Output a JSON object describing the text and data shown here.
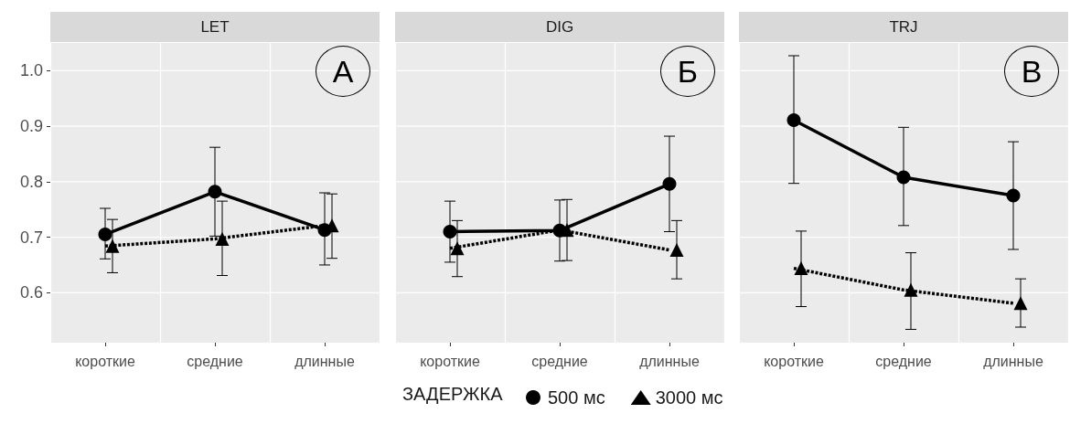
{
  "chart_data": [
    {
      "type": "line",
      "title": "LET",
      "categories": [
        "короткие",
        "средние",
        "длинные"
      ],
      "ylim": [
        0.51,
        1.05
      ],
      "yticks": [
        0.6,
        0.7,
        0.8,
        0.9,
        {
          "value": 1,
          "label": "1.0"
        }
      ],
      "grid": true,
      "annotations": [
        "А"
      ],
      "series": [
        {
          "color": "#000000",
          "marker": "circle",
          "line_style": "solid",
          "values": [
            0.705,
            0.782,
            0.713
          ],
          "errors": [
            [
              0.661,
              0.752
            ],
            [
              0.702,
              0.862
            ],
            [
              0.65,
              0.78
            ]
          ]
        },
        {
          "color": "#000000",
          "marker": "triangle",
          "line_style": "dashed",
          "values": [
            0.684,
            0.697,
            0.721
          ],
          "errors": [
            [
              0.636,
              0.732
            ],
            [
              0.631,
              0.765
            ],
            [
              0.662,
              0.778
            ]
          ]
        }
      ]
    },
    {
      "type": "line",
      "title": "DIG",
      "categories": [
        "короткие",
        "средние",
        "длинные"
      ],
      "ylim": [
        0.51,
        1.05
      ],
      "yticks": [
        0.6,
        0.7,
        0.8,
        0.9,
        1
      ],
      "grid": true,
      "tick_labels": "x",
      "annotations": [
        "Б"
      ],
      "legend": "bottom",
      "legend_title": "ЗАДЕРЖКА",
      "series": [
        {
          "name": "500 мс",
          "color": "#000000",
          "marker": "circle",
          "line_style": "solid",
          "values": [
            0.71,
            0.712,
            0.796
          ],
          "errors": [
            [
              0.655,
              0.765
            ],
            [
              0.657,
              0.767
            ],
            [
              0.71,
              0.882
            ]
          ]
        },
        {
          "name": "3000 мс",
          "color": "#000000",
          "marker": "triangle",
          "line_style": "dashed",
          "values": [
            0.68,
            0.713,
            0.677
          ],
          "errors": [
            [
              0.629,
              0.73
            ],
            [
              0.658,
              0.768
            ],
            [
              0.625,
              0.73
            ]
          ]
        }
      ]
    },
    {
      "type": "line",
      "title": "TRJ",
      "categories": [
        "короткие",
        "средние",
        "длинные"
      ],
      "ylim": [
        0.51,
        1.05
      ],
      "yticks": [
        0.6,
        0.7,
        0.8,
        0.9,
        1
      ],
      "grid": true,
      "tick_labels": "x",
      "annotations": [
        "В"
      ],
      "series": [
        {
          "color": "#000000",
          "marker": "circle",
          "line_style": "solid",
          "values": [
            0.911,
            0.808,
            0.775
          ],
          "errors": [
            [
              0.797,
              1.027
            ],
            [
              0.721,
              0.898
            ],
            [
              0.678,
              0.872
            ]
          ]
        },
        {
          "color": "#000000",
          "marker": "triangle",
          "line_style": "dashed",
          "values": [
            0.644,
            0.605,
            0.581
          ],
          "errors": [
            [
              0.575,
              0.711
            ],
            [
              0.534,
              0.672
            ],
            [
              0.538,
              0.625
            ]
          ]
        }
      ]
    }
  ]
}
